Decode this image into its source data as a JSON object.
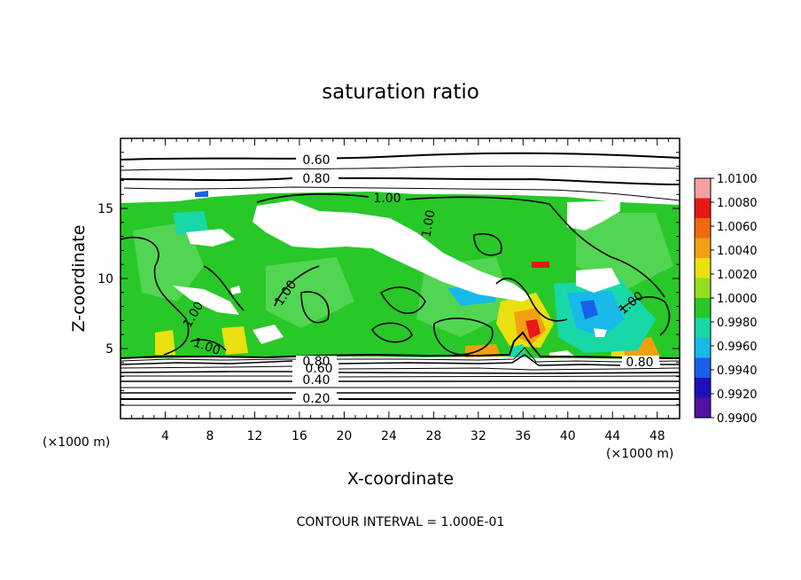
{
  "chart_data": {
    "type": "heatmap",
    "title": "saturation ratio",
    "xlabel": "X-coordinate",
    "ylabel": "Z-coordinate",
    "x_unit_left": "(×1000 m)",
    "x_unit_right": "(×1000 m)",
    "xlim": [
      0,
      50
    ],
    "ylim": [
      0,
      20
    ],
    "x_ticks": [
      4,
      8,
      12,
      16,
      20,
      24,
      28,
      32,
      36,
      40,
      44,
      48
    ],
    "y_ticks": [
      5,
      10,
      15
    ],
    "colorbar": {
      "min": 0.99,
      "max": 1.01,
      "labels": [
        "1.0100",
        "1.0080",
        "1.0060",
        "1.0040",
        "1.0020",
        "1.0000",
        "0.9980",
        "0.9960",
        "0.9940",
        "0.9920",
        "0.9900"
      ],
      "colors": [
        "#f4a0a0",
        "#e81818",
        "#f26a10",
        "#f2a010",
        "#e8e010",
        "#98dc20",
        "#28c828",
        "#18d8a8",
        "#18b8e8",
        "#1860e8",
        "#2010b8",
        "#5010a0"
      ]
    },
    "contour_labels": [
      "0.60",
      "0.80",
      "1.00",
      "1.00",
      "1.00",
      "1.00",
      "1.00",
      "1.00",
      "0.80",
      "0.60",
      "0.40",
      "0.20",
      "0.80"
    ],
    "note": "CONTOUR INTERVAL = 1.000E-01",
    "colors": {
      "main": "#28c828",
      "light_green": "#5cd85c",
      "yellow": "#e8e010",
      "orange": "#f2a010",
      "red": "#e81818",
      "cyan": "#18d8a8",
      "blue": "#18b8e8",
      "navy": "#1860e8"
    }
  }
}
